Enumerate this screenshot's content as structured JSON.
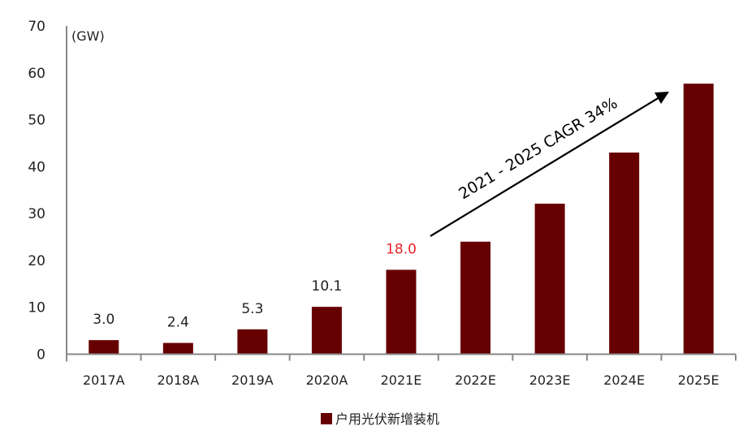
{
  "chart_data": {
    "type": "bar",
    "unit_label": "(GW)",
    "categories": [
      "2017A",
      "2018A",
      "2019A",
      "2020A",
      "2021E",
      "2022E",
      "2023E",
      "2024E",
      "2025E"
    ],
    "series": [
      {
        "name": "户用光伏新增装机",
        "values": [
          3.0,
          2.4,
          5.3,
          10.1,
          18.0,
          24.0,
          32.1,
          43.0,
          57.7
        ],
        "color": "#660000"
      }
    ],
    "data_labels": [
      "3.0",
      "2.4",
      "5.3",
      "10.1",
      "18.0",
      "",
      "",
      "",
      ""
    ],
    "data_label_colors": [
      "#222222",
      "#222222",
      "#222222",
      "#222222",
      "#e8262a",
      "",
      "",
      "",
      ""
    ],
    "ylim": [
      0,
      70
    ],
    "yticks": [
      "0",
      "10",
      "20",
      "30",
      "40",
      "50",
      "60",
      "70"
    ],
    "grid": false,
    "legend_position": "bottom",
    "annotation": {
      "text": "2021 - 2025 CAGR 34%",
      "type": "arrow"
    }
  }
}
